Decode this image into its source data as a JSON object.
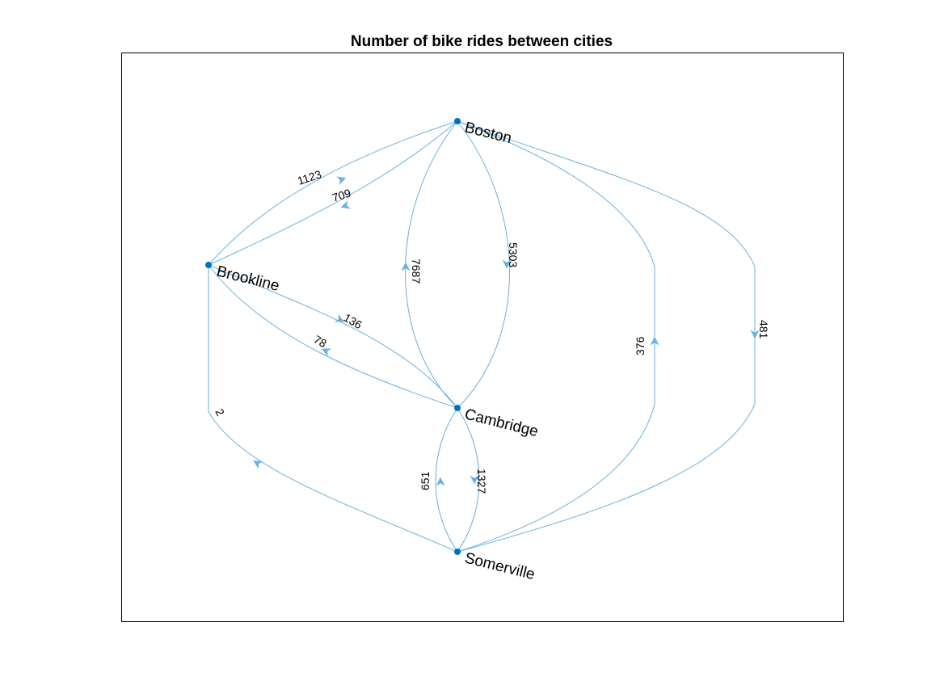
{
  "figure": {
    "title": "Number of bike rides between cities"
  },
  "graph": {
    "directed": true,
    "edge_color": "#6ab0e0",
    "node_color": "#0072BD",
    "nodes": [
      {
        "id": "boston",
        "label": "Boston"
      },
      {
        "id": "brookline",
        "label": "Brookline"
      },
      {
        "id": "cambridge",
        "label": "Cambridge"
      },
      {
        "id": "somerville",
        "label": "Somerville"
      }
    ],
    "edges": [
      {
        "source": "Brookline",
        "target": "Boston",
        "weight": "1123"
      },
      {
        "source": "Boston",
        "target": "Brookline",
        "weight": "709"
      },
      {
        "source": "Cambridge",
        "target": "Boston",
        "weight": "7687"
      },
      {
        "source": "Boston",
        "target": "Cambridge",
        "weight": "5303"
      },
      {
        "source": "Brookline",
        "target": "Cambridge",
        "weight": "136"
      },
      {
        "source": "Cambridge",
        "target": "Brookline",
        "weight": "78"
      },
      {
        "source": "Somerville",
        "target": "Brookline",
        "weight": "2"
      },
      {
        "source": "Somerville",
        "target": "Cambridge",
        "weight": "651"
      },
      {
        "source": "Cambridge",
        "target": "Somerville",
        "weight": "1327"
      },
      {
        "source": "Somerville",
        "target": "Boston",
        "weight": "376"
      },
      {
        "source": "Boston",
        "target": "Somerville",
        "weight": "481"
      }
    ]
  }
}
